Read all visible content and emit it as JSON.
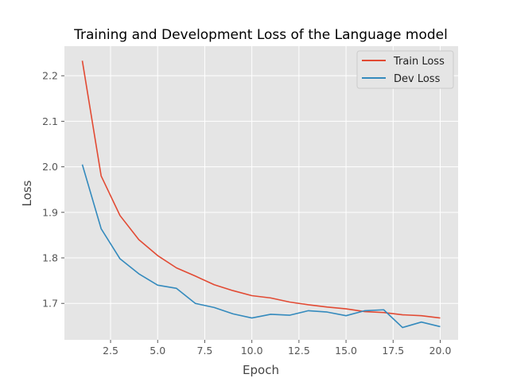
{
  "chart_data": {
    "type": "line",
    "title": "Training and Development Loss of the Language model",
    "xlabel": "Epoch",
    "ylabel": "Loss",
    "xlim": [
      0.05,
      20.95
    ],
    "ylim": [
      1.62,
      2.265
    ],
    "x": [
      1,
      2,
      3,
      4,
      5,
      6,
      7,
      8,
      9,
      10,
      11,
      12,
      13,
      14,
      15,
      16,
      17,
      18,
      19,
      20
    ],
    "xticks": [
      2.5,
      5.0,
      7.5,
      10.0,
      12.5,
      15.0,
      17.5,
      20.0
    ],
    "xtick_labels": [
      "2.5",
      "5.0",
      "7.5",
      "10.0",
      "12.5",
      "15.0",
      "17.5",
      "20.0"
    ],
    "yticks": [
      1.7,
      1.8,
      1.9,
      2.0,
      2.1,
      2.2
    ],
    "ytick_labels": [
      "1.7",
      "1.8",
      "1.9",
      "2.0",
      "2.1",
      "2.2"
    ],
    "grid": true,
    "legend_position": "top-right",
    "colors": {
      "background": "#e5e5e5",
      "grid": "#ffffff"
    },
    "series": [
      {
        "name": "Train Loss",
        "color": "#e24a33",
        "values": [
          2.233,
          1.98,
          1.893,
          1.84,
          1.805,
          1.778,
          1.76,
          1.741,
          1.728,
          1.717,
          1.712,
          1.703,
          1.697,
          1.692,
          1.688,
          1.682,
          1.68,
          1.675,
          1.673,
          1.668
        ]
      },
      {
        "name": "Dev Loss",
        "color": "#348abd",
        "values": [
          2.005,
          1.864,
          1.798,
          1.765,
          1.74,
          1.733,
          1.7,
          1.691,
          1.677,
          1.668,
          1.676,
          1.674,
          1.684,
          1.681,
          1.673,
          1.684,
          1.686,
          1.647,
          1.659,
          1.649
        ]
      }
    ]
  }
}
